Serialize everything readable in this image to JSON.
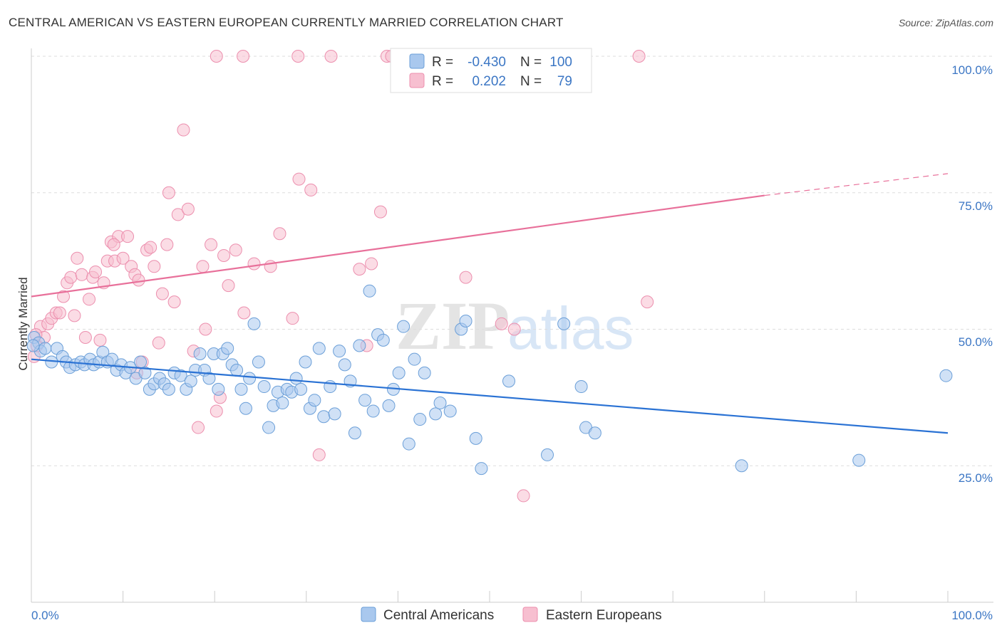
{
  "title": "CENTRAL AMERICAN VS EASTERN EUROPEAN CURRENTLY MARRIED CORRELATION CHART",
  "source": "Source: ZipAtlas.com",
  "watermark": {
    "zip": "ZIP",
    "atlas": "atlas"
  },
  "colors": {
    "blue_fill": "#a9c8ee",
    "blue_stroke": "#6b9fd8",
    "blue_line": "#2a72d4",
    "pink_fill": "#f7bfd0",
    "pink_stroke": "#ec8fae",
    "pink_line": "#e8709a",
    "accent_text": "#3b76c4",
    "grid": "#dddddd"
  },
  "legend": {
    "rows": [
      {
        "r_label": "R =",
        "r_value": "-0.430",
        "n_label": "N =",
        "n_value": "100"
      },
      {
        "r_label": "R =",
        "r_value": "0.202",
        "n_label": "N =",
        "n_value": "79"
      }
    ]
  },
  "bottom_legend": {
    "series1": "Central Americans",
    "series2": "Eastern Europeans"
  },
  "chart_data": {
    "type": "scatter",
    "ylabel": "Currently Married",
    "x_tick_labels": [
      "0.0%",
      "100.0%"
    ],
    "y_tick_labels": [
      "25.0%",
      "50.0%",
      "75.0%",
      "100.0%"
    ],
    "xlim": [
      0,
      100
    ],
    "ylim": [
      0,
      105
    ],
    "grid": true,
    "legend_position": "top-center",
    "series": [
      {
        "name": "Central Americans",
        "color": "#a9c8ee",
        "trend": {
          "x": [
            0,
            100
          ],
          "y": [
            44.5,
            31.0
          ]
        },
        "points": [
          [
            0.3,
            48.5
          ],
          [
            0.8,
            47.5
          ],
          [
            1.0,
            46.0
          ],
          [
            1.5,
            46.5
          ],
          [
            2.2,
            44.0
          ],
          [
            2.8,
            46.5
          ],
          [
            3.4,
            45.0
          ],
          [
            3.8,
            44.0
          ],
          [
            4.2,
            43.0
          ],
          [
            4.8,
            43.5
          ],
          [
            5.4,
            44.0
          ],
          [
            5.8,
            43.5
          ],
          [
            6.4,
            44.5
          ],
          [
            6.8,
            43.5
          ],
          [
            7.4,
            44.0
          ],
          [
            7.8,
            45.8
          ],
          [
            8.3,
            44.0
          ],
          [
            8.8,
            44.5
          ],
          [
            9.3,
            42.5
          ],
          [
            9.8,
            43.5
          ],
          [
            10.3,
            42.0
          ],
          [
            10.8,
            43.0
          ],
          [
            11.4,
            41.0
          ],
          [
            11.9,
            44.0
          ],
          [
            12.4,
            42.0
          ],
          [
            12.9,
            39.0
          ],
          [
            13.4,
            40.0
          ],
          [
            14.0,
            41.0
          ],
          [
            14.5,
            40.0
          ],
          [
            15.0,
            39.0
          ],
          [
            15.6,
            42.0
          ],
          [
            16.3,
            41.5
          ],
          [
            16.9,
            39.0
          ],
          [
            17.4,
            40.5
          ],
          [
            17.9,
            42.5
          ],
          [
            18.4,
            45.5
          ],
          [
            18.9,
            42.5
          ],
          [
            19.4,
            41.0
          ],
          [
            19.9,
            45.5
          ],
          [
            20.4,
            39.0
          ],
          [
            20.9,
            45.5
          ],
          [
            21.4,
            46.5
          ],
          [
            21.9,
            43.5
          ],
          [
            22.4,
            42.5
          ],
          [
            22.9,
            39.0
          ],
          [
            23.4,
            35.5
          ],
          [
            23.8,
            41.0
          ],
          [
            24.3,
            51.0
          ],
          [
            24.8,
            44.0
          ],
          [
            25.4,
            39.5
          ],
          [
            25.9,
            32.0
          ],
          [
            26.4,
            36.0
          ],
          [
            26.9,
            38.5
          ],
          [
            27.4,
            36.5
          ],
          [
            27.9,
            39.0
          ],
          [
            28.4,
            38.5
          ],
          [
            28.9,
            41.0
          ],
          [
            29.4,
            39.0
          ],
          [
            29.9,
            44.0
          ],
          [
            30.4,
            35.5
          ],
          [
            30.9,
            37.0
          ],
          [
            31.4,
            46.5
          ],
          [
            31.9,
            34.0
          ],
          [
            32.6,
            39.5
          ],
          [
            33.1,
            34.5
          ],
          [
            33.6,
            46.0
          ],
          [
            34.2,
            43.5
          ],
          [
            34.8,
            40.5
          ],
          [
            35.3,
            31.0
          ],
          [
            35.8,
            47.0
          ],
          [
            36.4,
            37.0
          ],
          [
            36.9,
            57.0
          ],
          [
            37.3,
            35.0
          ],
          [
            37.8,
            49.0
          ],
          [
            38.4,
            48.0
          ],
          [
            39.0,
            36.0
          ],
          [
            39.5,
            39.0
          ],
          [
            40.1,
            42.0
          ],
          [
            40.6,
            50.5
          ],
          [
            41.2,
            29.0
          ],
          [
            41.8,
            44.5
          ],
          [
            42.4,
            33.5
          ],
          [
            42.9,
            42.0
          ],
          [
            44.1,
            34.5
          ],
          [
            44.6,
            36.5
          ],
          [
            45.7,
            35.0
          ],
          [
            46.9,
            50.0
          ],
          [
            47.4,
            51.5
          ],
          [
            48.5,
            30.0
          ],
          [
            49.1,
            24.5
          ],
          [
            52.1,
            40.5
          ],
          [
            56.3,
            27.0
          ],
          [
            58.1,
            51.0
          ],
          [
            60.0,
            39.5
          ],
          [
            60.5,
            32.0
          ],
          [
            61.5,
            31.0
          ],
          [
            77.5,
            25.0
          ],
          [
            90.3,
            26.0
          ],
          [
            99.8,
            41.5
          ],
          [
            0.2,
            47.0
          ]
        ]
      },
      {
        "name": "Eastern Europeans",
        "color": "#f7bfd0",
        "trend": {
          "x": [
            0,
            80
          ],
          "y": [
            56.0,
            74.5
          ]
        },
        "trend_extension": {
          "x": [
            80,
            100
          ],
          "y": [
            74.5,
            78.5
          ]
        },
        "points": [
          [
            0.3,
            45.0
          ],
          [
            0.6,
            47.0
          ],
          [
            1.0,
            50.5
          ],
          [
            1.4,
            48.5
          ],
          [
            1.8,
            51.0
          ],
          [
            2.2,
            52.0
          ],
          [
            2.7,
            53.0
          ],
          [
            3.1,
            53.0
          ],
          [
            3.5,
            56.0
          ],
          [
            3.9,
            58.5
          ],
          [
            4.3,
            59.5
          ],
          [
            4.7,
            52.5
          ],
          [
            5.0,
            63.0
          ],
          [
            5.5,
            60.0
          ],
          [
            5.9,
            48.5
          ],
          [
            6.3,
            55.5
          ],
          [
            6.7,
            59.5
          ],
          [
            7.0,
            60.5
          ],
          [
            7.5,
            48.0
          ],
          [
            7.9,
            58.5
          ],
          [
            8.3,
            62.5
          ],
          [
            8.7,
            66.0
          ],
          [
            9.1,
            62.5
          ],
          [
            9.5,
            67.0
          ],
          [
            10.0,
            63.0
          ],
          [
            10.5,
            67.0
          ],
          [
            10.9,
            61.5
          ],
          [
            11.3,
            60.0
          ],
          [
            11.7,
            59.0
          ],
          [
            12.1,
            44.0
          ],
          [
            12.6,
            64.5
          ],
          [
            13.0,
            65.0
          ],
          [
            13.4,
            61.5
          ],
          [
            13.9,
            47.5
          ],
          [
            14.3,
            56.5
          ],
          [
            14.8,
            65.5
          ],
          [
            15.6,
            55.0
          ],
          [
            16.0,
            71.0
          ],
          [
            16.6,
            86.5
          ],
          [
            17.1,
            72.0
          ],
          [
            17.7,
            46.0
          ],
          [
            18.2,
            32.0
          ],
          [
            18.7,
            61.5
          ],
          [
            19.0,
            50.0
          ],
          [
            19.6,
            65.5
          ],
          [
            20.2,
            35.0
          ],
          [
            20.6,
            37.5
          ],
          [
            21.0,
            63.5
          ],
          [
            21.5,
            58.0
          ],
          [
            22.3,
            64.5
          ],
          [
            23.2,
            53.0
          ],
          [
            24.3,
            62.0
          ],
          [
            26.1,
            61.5
          ],
          [
            27.1,
            67.5
          ],
          [
            28.5,
            52.0
          ],
          [
            29.2,
            77.5
          ],
          [
            30.5,
            75.5
          ],
          [
            31.4,
            27.0
          ],
          [
            32.7,
            100.0
          ],
          [
            35.8,
            61.0
          ],
          [
            36.6,
            47.0
          ],
          [
            37.1,
            62.0
          ],
          [
            38.1,
            71.5
          ],
          [
            38.8,
            100.0
          ],
          [
            39.3,
            100.0
          ],
          [
            42.4,
            100.0
          ],
          [
            47.4,
            59.5
          ],
          [
            51.3,
            51.0
          ],
          [
            52.7,
            50.0
          ],
          [
            53.7,
            19.5
          ],
          [
            66.3,
            100.0
          ],
          [
            67.2,
            55.0
          ],
          [
            20.2,
            100.0
          ],
          [
            23.1,
            100.0
          ],
          [
            29.1,
            100.0
          ],
          [
            15.0,
            75.0
          ],
          [
            0.5,
            49.0
          ],
          [
            9.0,
            65.5
          ],
          [
            11.5,
            42.0
          ]
        ]
      }
    ]
  }
}
